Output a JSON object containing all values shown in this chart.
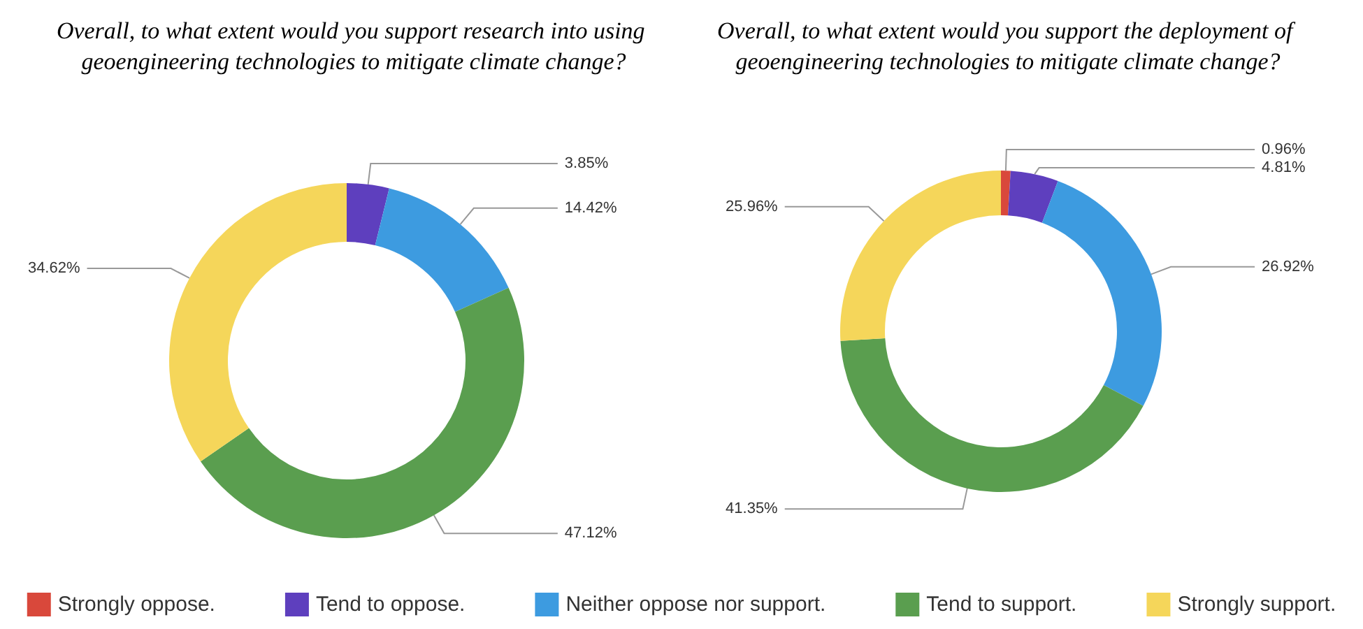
{
  "chart_data": [
    {
      "type": "donut",
      "title": "Overall, to what extent would you support research into using geoengineering technologies to mitigate climate change?",
      "categories": [
        null,
        null,
        null,
        null
      ],
      "values": [
        3.85,
        14.42,
        47.12,
        34.62
      ],
      "value_labels": [
        "3.85%",
        "14.42%",
        "47.12%",
        "34.62%"
      ],
      "colors": [
        "#5e3fbe",
        "#3d9be0",
        "#5a9e4f",
        "#f5d65a"
      ],
      "legend": false
    },
    {
      "type": "donut",
      "title": "Overall, to what extent would you support the deployment of geoengineering technologies to mitigate climate change?",
      "categories": [
        "Strongly oppose.",
        "Tend to oppose.",
        "Neither oppose nor support.",
        "Tend to support.",
        "Strongly support."
      ],
      "values": [
        0.96,
        4.81,
        26.92,
        41.35,
        25.96
      ],
      "value_labels": [
        "0.96%",
        "4.81%",
        "26.92%",
        "41.35%",
        "25.96%"
      ],
      "colors": [
        "#d9483b",
        "#5e3fbe",
        "#3d9be0",
        "#5a9e4f",
        "#f5d65a"
      ],
      "legend": "bottom"
    }
  ]
}
